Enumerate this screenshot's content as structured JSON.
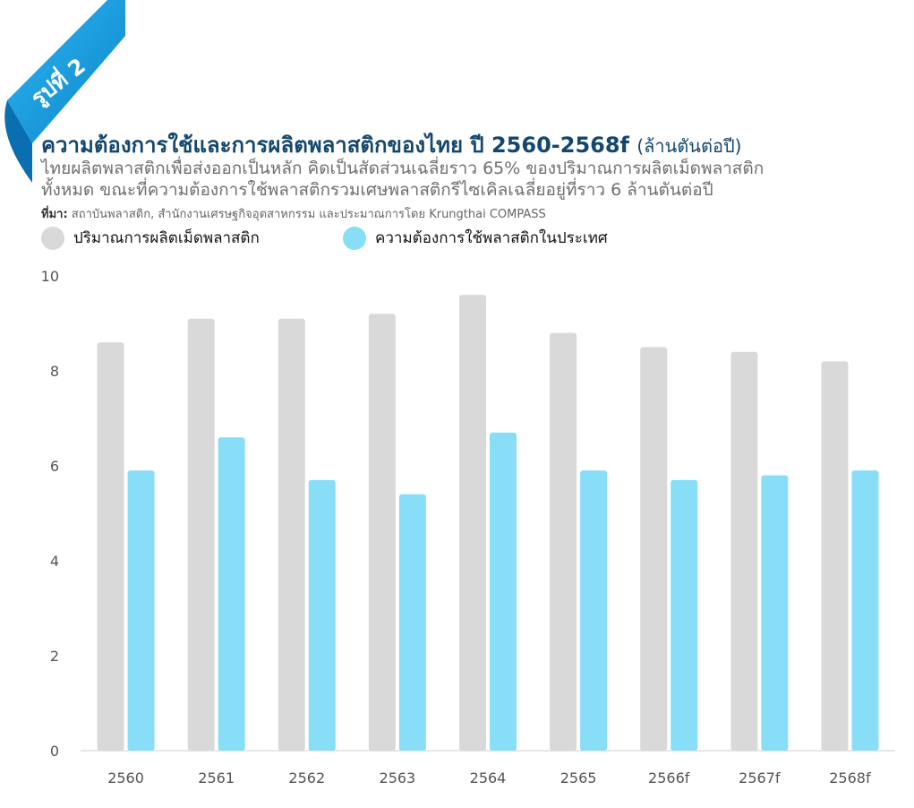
{
  "badge": {
    "text": "รูปที่ 2"
  },
  "header": {
    "title": "ความต้องการใช้และการผลิตพลาสติกของไทย ปี 2560-2568f",
    "unit": "(ล้านตันต่อปี)",
    "subtitle_line1": "ไทยผลิตพลาสติกเพื่อส่งออกเป็นหลัก คิดเป็นสัดส่วนเฉลี่ยราว 65% ของปริมาณการผลิตเม็ดพลาสติก",
    "subtitle_line2": "ทั้งหมด ขณะที่ความต้องการใช้พลาสติกรวมเศษพลาสติกรีไซเคิลเฉลี่ยอยู่ที่ราว 6 ล้านตันต่อปี",
    "source_label": "ที่มา:",
    "source_text": " สถาบันพลาสติก, สำนักงานเศรษฐกิจอุตสาหกรรม และประมาณการโดย Krungthai COMPASS"
  },
  "colors": {
    "production": "#d9d9d9",
    "demand": "#87def6",
    "title": "#13476f",
    "ribbon": "#1197d9"
  },
  "chart_data": {
    "type": "bar",
    "categories": [
      "2560",
      "2561",
      "2562",
      "2563",
      "2564",
      "2565",
      "2566f",
      "2567f",
      "2568f"
    ],
    "series": [
      {
        "name": "ปริมาณการผลิตเม็ดพลาสติก",
        "values": [
          8.6,
          9.1,
          9.1,
          9.2,
          9.6,
          8.8,
          8.5,
          8.4,
          8.2
        ]
      },
      {
        "name": "ความต้องการใช้พลาสติกในประเทศ",
        "values": [
          5.9,
          6.6,
          5.7,
          5.4,
          6.7,
          5.9,
          5.7,
          5.8,
          5.9
        ]
      }
    ],
    "yticks": [
      0,
      2,
      4,
      6,
      8,
      10
    ],
    "ylim": [
      0,
      10
    ],
    "legend": "top-left",
    "grid": false
  }
}
